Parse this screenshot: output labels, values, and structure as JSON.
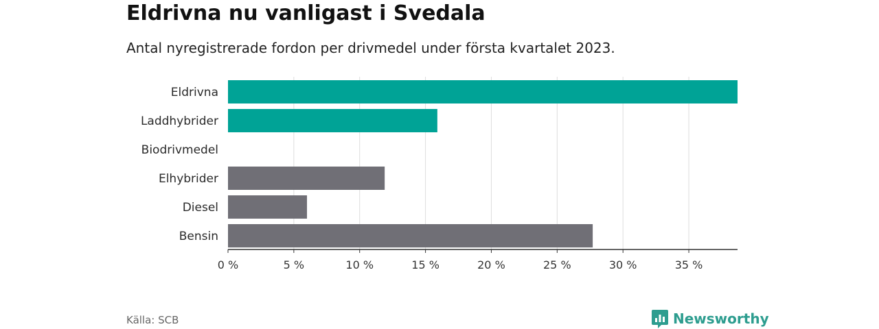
{
  "title": "Eldrivna nu vanligast i Svedala",
  "subtitle": "Antal nyregistrerade fordon per drivmedel under första kvartalet 2023.",
  "source": "Källa: SCB",
  "brand": "Newsworthy",
  "colors": {
    "highlight": "#00a396",
    "other": "#706f76",
    "grid": "#dddddd",
    "axis": "#333333",
    "brand": "#2d9d8f"
  },
  "chart_data": {
    "type": "bar",
    "orientation": "horizontal",
    "categories": [
      "Eldrivna",
      "Laddhybrider",
      "Biodrivmedel",
      "Elhybrider",
      "Diesel",
      "Bensin"
    ],
    "values": [
      38.7,
      15.9,
      0,
      11.9,
      6.0,
      27.7
    ],
    "highlighted": [
      true,
      true,
      true,
      false,
      false,
      false
    ],
    "unit": "%",
    "xlim": [
      0,
      38.7
    ],
    "xticks": [
      0,
      5,
      10,
      15,
      20,
      25,
      30,
      35
    ],
    "xtick_labels": [
      "0 %",
      "5 %",
      "10 %",
      "15 %",
      "20 %",
      "25 %",
      "30 %",
      "35 %"
    ],
    "grid": true
  }
}
